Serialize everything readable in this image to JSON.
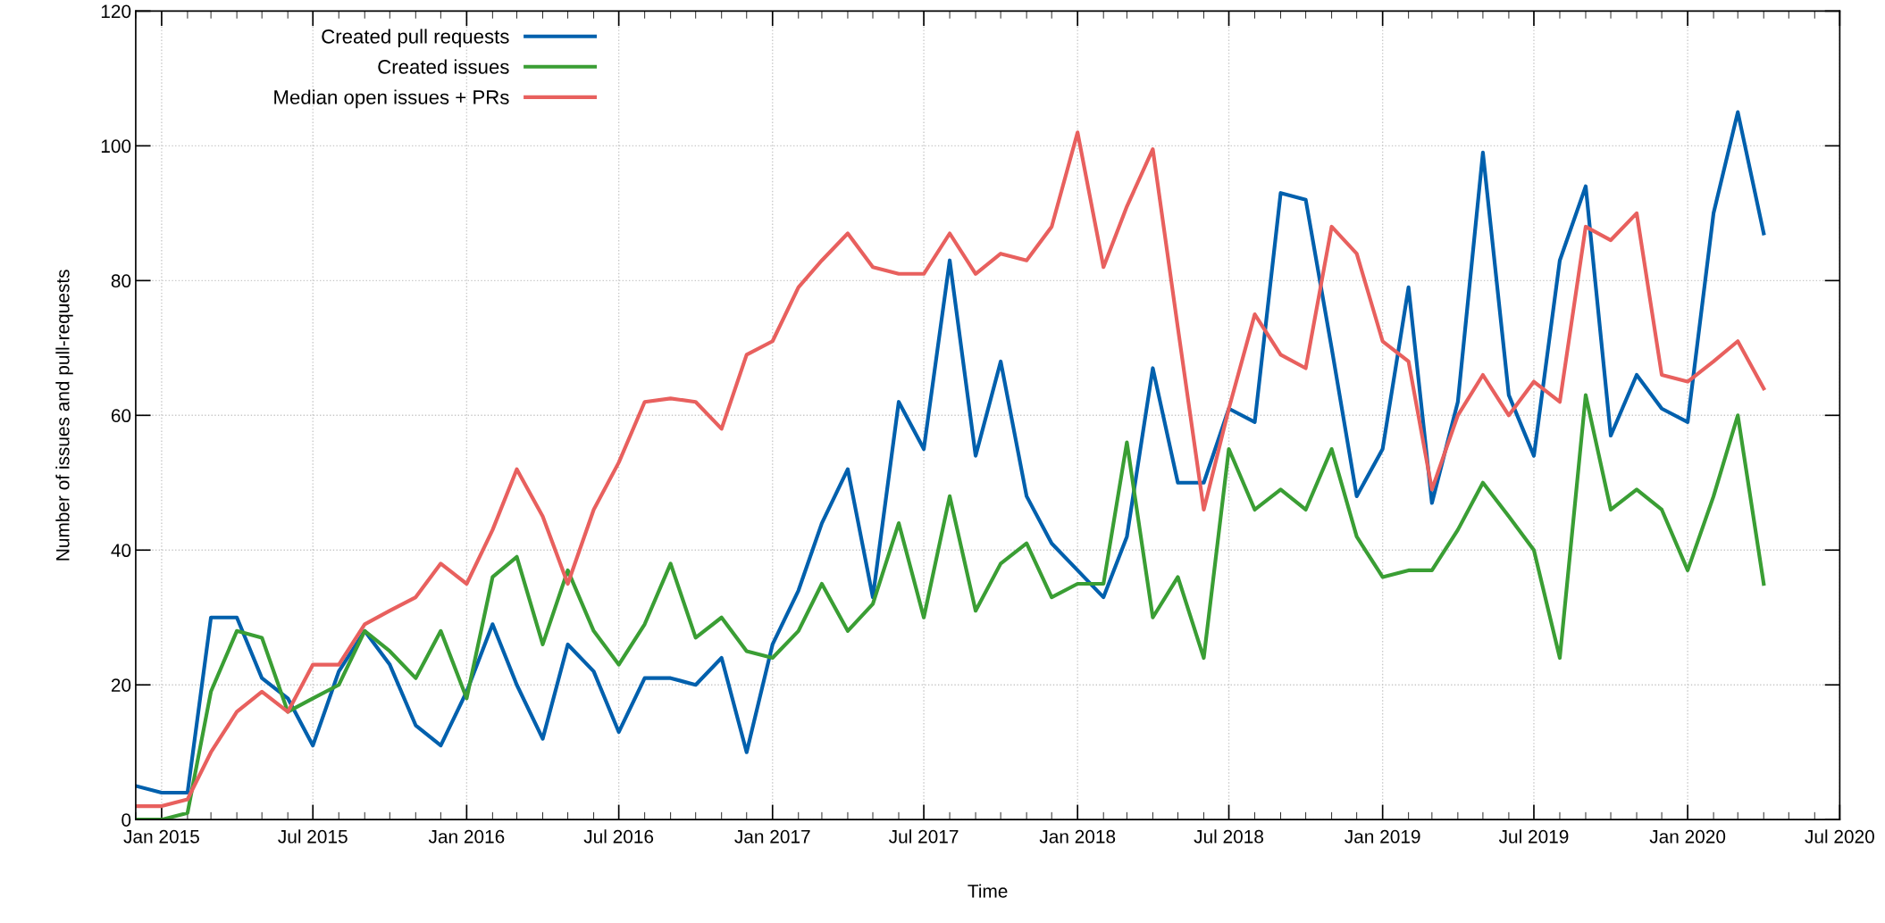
{
  "chart_data": {
    "type": "line",
    "xlabel": "Time",
    "ylabel": "Number of issues and pull-requests",
    "x": [
      "2014-12",
      "2015-01",
      "2015-02",
      "2015-03",
      "2015-04",
      "2015-05",
      "2015-06",
      "2015-07",
      "2015-08",
      "2015-09",
      "2015-10",
      "2015-11",
      "2015-12",
      "2016-01",
      "2016-02",
      "2016-03",
      "2016-04",
      "2016-05",
      "2016-06",
      "2016-07",
      "2016-08",
      "2016-09",
      "2016-10",
      "2016-11",
      "2016-12",
      "2017-01",
      "2017-02",
      "2017-03",
      "2017-04",
      "2017-05",
      "2017-06",
      "2017-07",
      "2017-08",
      "2017-09",
      "2017-10",
      "2017-11",
      "2017-12",
      "2018-01",
      "2018-02",
      "2018-03",
      "2018-04",
      "2018-05",
      "2018-06",
      "2018-07",
      "2018-08",
      "2018-09",
      "2018-10",
      "2018-11",
      "2018-12",
      "2019-01",
      "2019-02",
      "2019-03",
      "2019-04",
      "2019-05",
      "2019-06",
      "2019-07",
      "2019-08",
      "2019-09",
      "2019-10",
      "2019-11",
      "2019-12",
      "2020-01",
      "2020-02",
      "2020-03",
      "2020-04"
    ],
    "series": [
      {
        "name": "Created pull requests",
        "color": "#0060ad",
        "values": [
          5,
          4,
          4,
          30,
          30,
          21,
          18,
          11,
          22,
          28,
          23,
          14,
          11,
          19,
          29,
          20,
          12,
          26,
          22,
          13,
          21,
          21,
          20,
          24,
          10,
          26,
          34,
          44,
          52,
          33,
          62,
          55,
          83,
          54,
          68,
          48,
          41,
          37,
          33,
          42,
          67,
          50,
          50,
          61,
          59,
          93,
          92,
          70,
          48,
          55,
          79,
          47,
          62,
          99,
          63,
          54,
          83,
          94,
          57,
          66,
          61,
          59,
          90,
          105,
          87
        ]
      },
      {
        "name": "Created issues",
        "color": "#3a9e34",
        "values": [
          0,
          0,
          1,
          19,
          28,
          27,
          16,
          18,
          20,
          28,
          25,
          21,
          28,
          18,
          36,
          39,
          26,
          37,
          28,
          23,
          29,
          38,
          27,
          30,
          25,
          24,
          28,
          35,
          28,
          32,
          44,
          30,
          48,
          31,
          38,
          41,
          33,
          35,
          35,
          56,
          30,
          36,
          24,
          55,
          46,
          49,
          46,
          55,
          42,
          36,
          37,
          37,
          43,
          50,
          45,
          40,
          24,
          63,
          46,
          49,
          46,
          37,
          48,
          60,
          35
        ]
      },
      {
        "name": "Median open issues + PRs",
        "color": "#e8605e",
        "values": [
          2,
          2,
          3,
          10,
          16,
          19,
          16,
          23,
          23,
          29,
          31,
          33,
          38,
          35,
          43,
          52,
          45,
          35,
          46,
          53,
          62,
          62.5,
          62,
          58,
          69,
          71,
          79,
          83,
          87,
          82,
          81,
          81,
          87,
          81,
          84,
          83,
          88,
          102,
          82,
          91,
          99.5,
          73,
          46,
          61,
          75,
          69,
          67,
          88,
          84,
          71,
          68,
          49,
          60,
          66,
          60,
          65,
          62,
          88,
          86,
          90,
          66,
          65,
          68,
          71,
          64
        ]
      }
    ],
    "xlim": [
      "2014-12",
      "2020-07"
    ],
    "xticks": [
      {
        "value": "2015-01",
        "label": "Jan 2015"
      },
      {
        "value": "2015-07",
        "label": "Jul 2015"
      },
      {
        "value": "2016-01",
        "label": "Jan 2016"
      },
      {
        "value": "2016-07",
        "label": "Jul 2016"
      },
      {
        "value": "2017-01",
        "label": "Jan 2017"
      },
      {
        "value": "2017-07",
        "label": "Jul 2017"
      },
      {
        "value": "2018-01",
        "label": "Jan 2018"
      },
      {
        "value": "2018-07",
        "label": "Jul 2018"
      },
      {
        "value": "2019-01",
        "label": "Jan 2019"
      },
      {
        "value": "2019-07",
        "label": "Jul 2019"
      },
      {
        "value": "2020-01",
        "label": "Jan 2020"
      },
      {
        "value": "2020-07",
        "label": "Jul 2020"
      }
    ],
    "ylim": [
      0,
      120
    ],
    "yticks": [
      0,
      20,
      40,
      60,
      80,
      100,
      120
    ],
    "grid": true,
    "legend": "top left",
    "line_style": "solid",
    "marker": "none"
  }
}
